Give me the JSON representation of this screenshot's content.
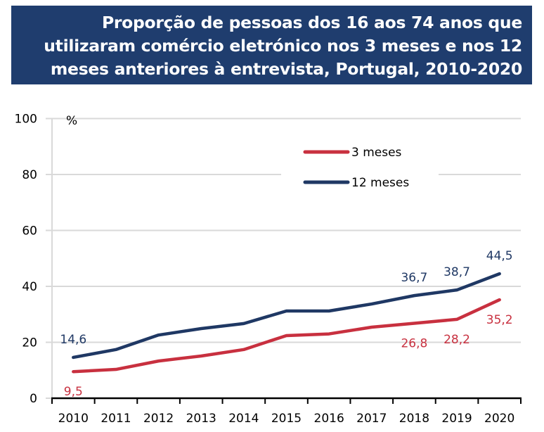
{
  "chart_data": {
    "type": "line",
    "title": "Proporção de pessoas dos 16 aos 74 anos que utilizaram comércio eletrónico nos 3 meses e nos 12 meses anteriores à entrevista, Portugal, 2010-2020",
    "title_lines": [
      "Proporção de pessoas dos 16 aos 74 anos que",
      "utilizaram comércio eletrónico nos 3 meses e nos 12",
      "meses anteriores à entrevista, Portugal, 2010-2020"
    ],
    "ylabel": "%",
    "xlabel": "",
    "ylim": [
      0,
      100
    ],
    "yticks": [
      0,
      20,
      40,
      60,
      80,
      100
    ],
    "grid": true,
    "legend_position": "top-center",
    "categories": [
      "2010",
      "2011",
      "2012",
      "2013",
      "2014",
      "2015",
      "2016",
      "2017",
      "2018",
      "2019",
      "2020"
    ],
    "series": [
      {
        "name": "3 meses",
        "color": "#c8303f",
        "values": [
          9.5,
          10.3,
          13.3,
          15.1,
          17.4,
          22.4,
          23.0,
          25.4,
          26.8,
          28.2,
          35.2
        ],
        "labels": [
          {
            "index": 0,
            "text": "9,5",
            "position": "below"
          },
          {
            "index": 8,
            "text": "26,8",
            "position": "below"
          },
          {
            "index": 9,
            "text": "28,2",
            "position": "below"
          },
          {
            "index": 10,
            "text": "35,2",
            "position": "below"
          }
        ]
      },
      {
        "name": "12 meses",
        "color": "#1f3864",
        "values": [
          14.6,
          17.4,
          22.6,
          24.9,
          26.7,
          31.2,
          31.2,
          33.7,
          36.7,
          38.7,
          44.5
        ],
        "labels": [
          {
            "index": 0,
            "text": "14,6",
            "position": "above"
          },
          {
            "index": 8,
            "text": "36,7",
            "position": "above"
          },
          {
            "index": 9,
            "text": "38,7",
            "position": "above"
          },
          {
            "index": 10,
            "text": "44,5",
            "position": "above"
          }
        ]
      }
    ]
  }
}
